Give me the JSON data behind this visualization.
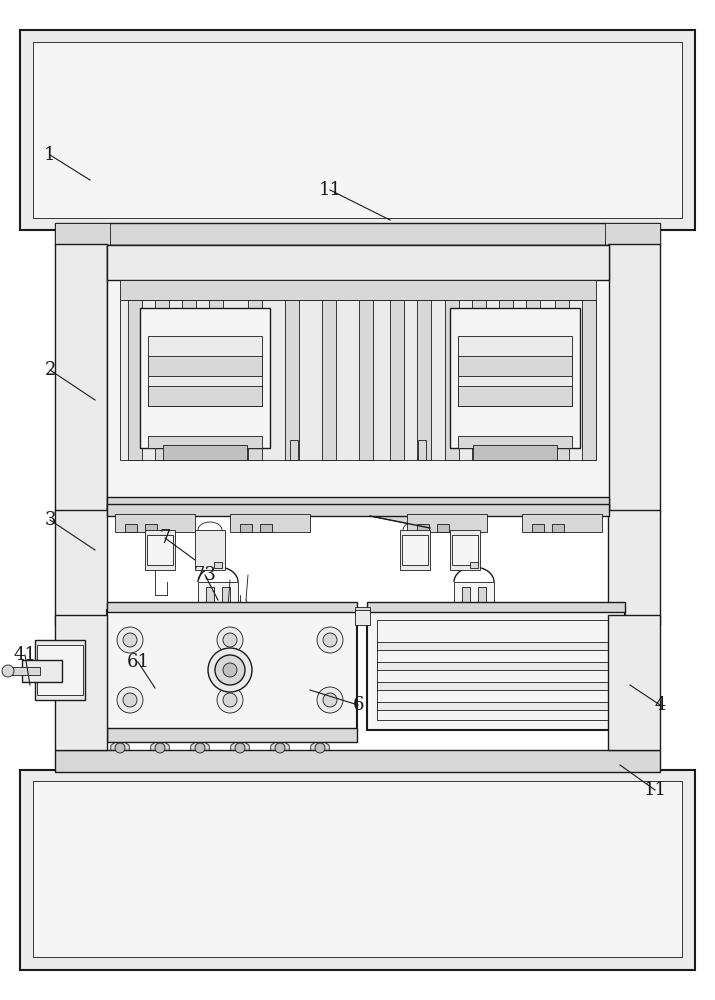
{
  "bg_color": "#ffffff",
  "lc": "#1a1a1a",
  "gray1": "#f5f5f5",
  "gray2": "#ebebeb",
  "gray3": "#d8d8d8",
  "gray4": "#c0c0c0",
  "gray5": "#a8a8a8"
}
